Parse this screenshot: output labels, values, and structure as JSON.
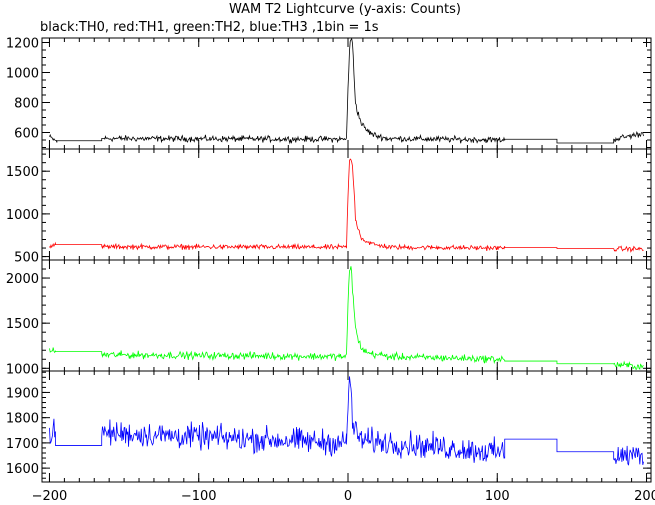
{
  "chart_data": {
    "type": "line",
    "title": "WAM T2 Lightcurve (y-axis: Counts)",
    "subtitle": "black:TH0, red:TH1, green:TH2, blue:TH3 ,1bin = 1s",
    "xlim": [
      -205,
      203
    ],
    "xticks": [
      -200,
      -100,
      0,
      100,
      200
    ],
    "x_major_step": 100,
    "x_minor_step": 10,
    "grid": false,
    "panels": [
      {
        "name": "TH0",
        "color": "#000000",
        "ylim": [
          490,
          1230
        ],
        "yticks": [
          600,
          800,
          1000,
          1200
        ],
        "y_major_step": 200,
        "y_minor_step": 50,
        "noise": 14,
        "segments": [
          {
            "x": [
              -200,
              -195
            ],
            "y": [
              570,
              540
            ]
          },
          {
            "x": [
              -195,
              -165
            ],
            "y": [
              545,
              545
            ],
            "flat": true
          },
          {
            "x": [
              -165,
              -163
            ],
            "y": [
              560,
              560
            ],
            "flat": true
          },
          {
            "x": [
              -163,
              -1
            ],
            "y": [
              560,
              555
            ]
          },
          {
            "x": [
              -1,
              0,
              1,
              2,
              3,
              4,
              5,
              7,
              9,
              12,
              16,
              20,
              25
            ],
            "y": [
              560,
              900,
              1150,
              1220,
              1200,
              1000,
              800,
              720,
              660,
              620,
              590,
              575,
              565
            ]
          },
          {
            "x": [
              25,
              105
            ],
            "y": [
              560,
              550
            ]
          },
          {
            "x": [
              105,
              140
            ],
            "y": [
              555,
              555
            ],
            "flat": true
          },
          {
            "x": [
              140,
              178
            ],
            "y": [
              530,
              530
            ],
            "flat": true
          },
          {
            "x": [
              178,
              198
            ],
            "y": [
              555,
              595
            ]
          }
        ]
      },
      {
        "name": "TH1",
        "color": "#ff0000",
        "ylim": [
          460,
          1760
        ],
        "yticks": [
          500,
          1000,
          1500
        ],
        "y_major_step": 500,
        "y_minor_step": 100,
        "noise": 20,
        "segments": [
          {
            "x": [
              -200,
              -196
            ],
            "y": [
              630,
              630
            ]
          },
          {
            "x": [
              -196,
              -165
            ],
            "y": [
              640,
              640
            ],
            "flat": true
          },
          {
            "x": [
              -165,
              -1
            ],
            "y": [
              615,
              610
            ]
          },
          {
            "x": [
              -1,
              0,
              1,
              2,
              3,
              4,
              5,
              7,
              9,
              12,
              16,
              20,
              25
            ],
            "y": [
              620,
              1200,
              1600,
              1650,
              1550,
              1300,
              950,
              820,
              720,
              680,
              650,
              630,
              625
            ]
          },
          {
            "x": [
              25,
              105
            ],
            "y": [
              610,
              600
            ]
          },
          {
            "x": [
              105,
              140
            ],
            "y": [
              605,
              605
            ],
            "flat": true
          },
          {
            "x": [
              140,
              178
            ],
            "y": [
              595,
              595
            ],
            "flat": true
          },
          {
            "x": [
              178,
              198
            ],
            "y": [
              590,
              590
            ]
          }
        ]
      },
      {
        "name": "TH2",
        "color": "#00ff00",
        "ylim": [
          970,
          2200
        ],
        "yticks": [
          1000,
          1500,
          2000
        ],
        "y_major_step": 500,
        "y_minor_step": 100,
        "noise": 28,
        "segments": [
          {
            "x": [
              -200,
              -196
            ],
            "y": [
              1190,
              1190
            ]
          },
          {
            "x": [
              -196,
              -165
            ],
            "y": [
              1185,
              1185
            ],
            "flat": true
          },
          {
            "x": [
              -165,
              -1
            ],
            "y": [
              1150,
              1130
            ]
          },
          {
            "x": [
              -1,
              0,
              1,
              2,
              3,
              4,
              5,
              7,
              9,
              12,
              16,
              20,
              25
            ],
            "y": [
              1140,
              1700,
              2100,
              2150,
              1900,
              1650,
              1450,
              1300,
              1230,
              1180,
              1160,
              1150,
              1140
            ]
          },
          {
            "x": [
              25,
              105
            ],
            "y": [
              1130,
              1100
            ]
          },
          {
            "x": [
              105,
              140
            ],
            "y": [
              1080,
              1080
            ],
            "flat": true
          },
          {
            "x": [
              140,
              178
            ],
            "y": [
              1050,
              1050
            ],
            "flat": true
          },
          {
            "x": [
              178,
              198
            ],
            "y": [
              1040,
              1020
            ]
          }
        ]
      },
      {
        "name": "TH3",
        "color": "#0000ff",
        "ylim": [
          1545,
          1985
        ],
        "yticks": [
          1600,
          1700,
          1800,
          1900
        ],
        "y_major_step": 100,
        "y_minor_step": 20,
        "noise": 35,
        "segments": [
          {
            "x": [
              -200,
              -196
            ],
            "y": [
              1740,
              1740
            ]
          },
          {
            "x": [
              -196,
              -165
            ],
            "y": [
              1690,
              1690
            ],
            "flat": true
          },
          {
            "x": [
              -165,
              -1
            ],
            "y": [
              1740,
              1700
            ]
          },
          {
            "x": [
              -1,
              0,
              1,
              2,
              3,
              4,
              6,
              10
            ],
            "y": [
              1710,
              1850,
              1960,
              1900,
              1800,
              1760,
              1730,
              1710
            ]
          },
          {
            "x": [
              10,
              105
            ],
            "y": [
              1710,
              1660
            ]
          },
          {
            "x": [
              105,
              140
            ],
            "y": [
              1715,
              1715
            ],
            "flat": true
          },
          {
            "x": [
              140,
              178
            ],
            "y": [
              1665,
              1665
            ],
            "flat": true
          },
          {
            "x": [
              178,
              198
            ],
            "y": [
              1650,
              1650
            ]
          }
        ]
      }
    ]
  }
}
